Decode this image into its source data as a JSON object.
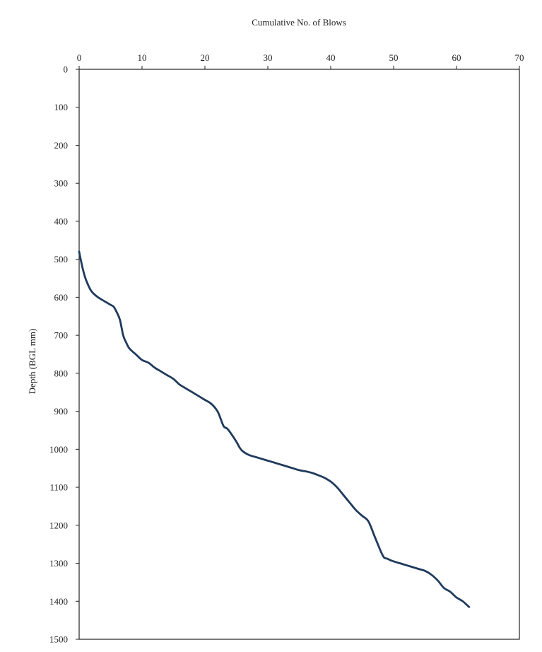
{
  "chart_data": {
    "type": "line",
    "title": "Cumulative No. of Blows",
    "xlabel": "",
    "ylabel": "Depth (BGL mm)",
    "xlim": [
      0,
      70
    ],
    "ylim": [
      0,
      1500
    ],
    "y_inverted": true,
    "x_axis_position": "top",
    "grid": false,
    "legend": "none",
    "x_ticks": [
      "0",
      "10",
      "20",
      "30",
      "40",
      "50",
      "60",
      "70"
    ],
    "y_ticks": [
      "0",
      "100",
      "200",
      "300",
      "400",
      "500",
      "600",
      "700",
      "800",
      "900",
      "1000",
      "1100",
      "1200",
      "1300",
      "1400",
      "1500"
    ],
    "series": [
      {
        "color": "#1f3a5c",
        "x": [
          0,
          0.5,
          1,
          1.5,
          2,
          3,
          4,
          5,
          5.5,
          6,
          6.5,
          7,
          7.5,
          8,
          9,
          10,
          11,
          12,
          13,
          14,
          15,
          16,
          17,
          18,
          19,
          20,
          21,
          22,
          22.5,
          23,
          23.5,
          24,
          25,
          25.5,
          26,
          27,
          28,
          29,
          30,
          31,
          32,
          33,
          34,
          35,
          36,
          37,
          38,
          39,
          40,
          41,
          42,
          43,
          44,
          45,
          46,
          47,
          48,
          48.5,
          49,
          49.5,
          50,
          51,
          52,
          53,
          54,
          55,
          56,
          57,
          58,
          59,
          60,
          61,
          62
        ],
        "y": [
          480,
          520,
          550,
          570,
          585,
          600,
          610,
          620,
          625,
          640,
          660,
          700,
          720,
          735,
          750,
          765,
          772,
          785,
          795,
          805,
          815,
          830,
          840,
          850,
          860,
          870,
          880,
          900,
          920,
          940,
          945,
          955,
          980,
          995,
          1005,
          1015,
          1020,
          1025,
          1030,
          1035,
          1040,
          1045,
          1050,
          1055,
          1058,
          1062,
          1068,
          1075,
          1085,
          1100,
          1120,
          1140,
          1160,
          1175,
          1190,
          1230,
          1270,
          1285,
          1288,
          1292,
          1295,
          1300,
          1305,
          1310,
          1315,
          1320,
          1330,
          1345,
          1365,
          1375,
          1390,
          1400,
          1415
        ]
      }
    ]
  },
  "colors": {
    "line": "#1f3a5c",
    "axis": "#222222",
    "background": "#ffffff"
  }
}
